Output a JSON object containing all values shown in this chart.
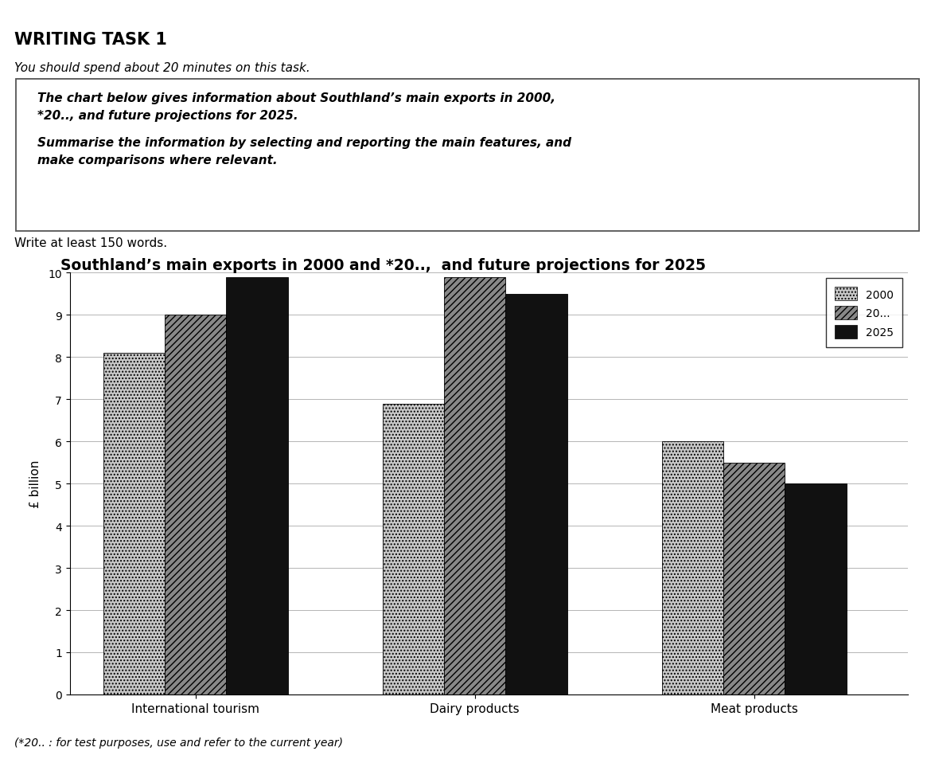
{
  "title": "Southland’s main exports in 2000 and *20..,  and future projections for 2025",
  "header_title": "WRITING TASK 1",
  "header_subtitle": "You should spend about 20 minutes on this task.",
  "box_line1": "The chart below gives information about Southland’s main exports in 2000,",
  "box_line2": "*20.., and future projections for 2025.",
  "box_line3": "Summarise the information by selecting and reporting the main features, and",
  "box_line4": "make comparisons where relevant.",
  "write_note": "Write at least 150 words.",
  "footer_note": "(*20.. : for test purposes, use and refer to the current year)",
  "categories": [
    "International tourism",
    "Dairy products",
    "Meat products"
  ],
  "series": [
    {
      "label": "2000",
      "values": [
        8.1,
        6.9,
        6.0
      ],
      "hatch": "....",
      "color": "#c8c8c8"
    },
    {
      "label": "20...",
      "values": [
        9.0,
        9.9,
        5.5
      ],
      "hatch": "////",
      "color": "#888888"
    },
    {
      "label": "2025",
      "values": [
        9.9,
        9.5,
        5.0
      ],
      "hatch": "",
      "color": "#111111"
    }
  ],
  "ylabel": "£ billion",
  "ylim": [
    0,
    10
  ],
  "yticks": [
    0,
    1,
    2,
    3,
    4,
    5,
    6,
    7,
    8,
    9,
    10
  ],
  "background_color": "#ffffff"
}
